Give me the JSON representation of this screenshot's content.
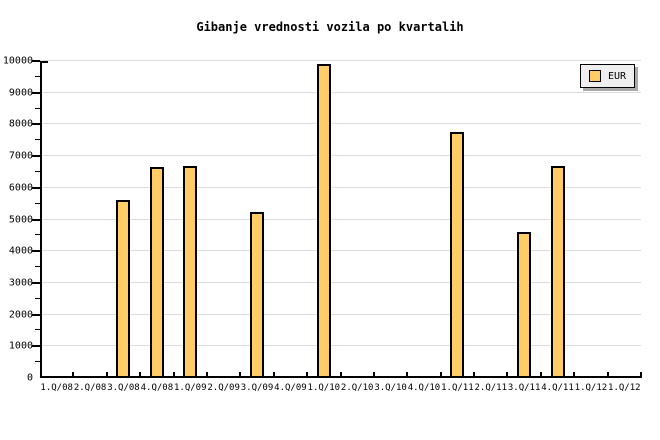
{
  "chart_data": {
    "type": "bar",
    "title": "Gibanje vrednosti vozila po kvartalih",
    "categories": [
      "1.Q/08",
      "2.Q/08",
      "3.Q/08",
      "4.Q/08",
      "1.Q/09",
      "2.Q/09",
      "3.Q/09",
      "4.Q/09",
      "1.Q/10",
      "2.Q/10",
      "3.Q/10",
      "4.Q/10",
      "1.Q/11",
      "2.Q/11",
      "3.Q/11",
      "4.Q/11",
      "1.Q/12",
      "1.Q/12"
    ],
    "series": [
      {
        "name": "EUR",
        "values": [
          0,
          0,
          5600,
          6650,
          6700,
          0,
          5250,
          0,
          9900,
          0,
          0,
          0,
          7750,
          0,
          4600,
          6700,
          0,
          0
        ]
      }
    ],
    "xlabel": "",
    "ylabel": "",
    "ylim": [
      0,
      10000
    ],
    "ytick_step": 1000,
    "ytick_minor_step": 500,
    "grid": true,
    "legend_position": "top-right",
    "colors": {
      "bar_fill": "#FFCC66",
      "bar_border": "#000000",
      "grid": "#DCDCDC",
      "axis": "#000000",
      "legend_bg": "#EFEFEF",
      "legend_shadow": "#AAAAAA",
      "background": "#FFFFFF"
    }
  }
}
